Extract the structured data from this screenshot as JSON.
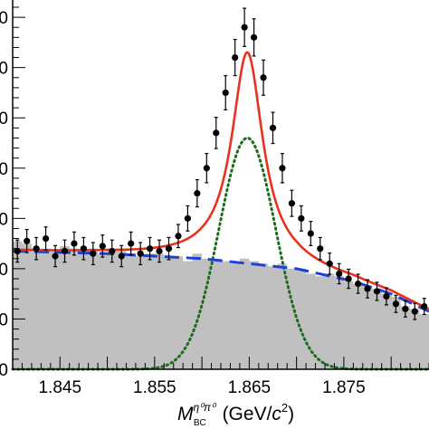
{
  "chart_data": {
    "type": "line",
    "title": "",
    "xlabel": {
      "main": "M",
      "sup": "η⁰π⁰",
      "sub": "BC",
      "units_open": " (GeV/",
      "units_italic": "c",
      "units_pow": "2",
      "units_close": ")"
    },
    "ylabel": "",
    "xlim": [
      1.84,
      1.884
    ],
    "ylim": [
      0,
      72
    ],
    "x_tick_labels": [
      "1.845",
      "1.855",
      "1.865",
      "1.875"
    ],
    "x_ticks": [
      1.845,
      1.855,
      1.865,
      1.875
    ],
    "y_tick_label_fragments": [
      "0",
      "0",
      "0",
      "0",
      "0",
      "0",
      "0",
      "0"
    ],
    "y_ticks": [
      0,
      10,
      20,
      30,
      40,
      50,
      60,
      70
    ],
    "grid": false,
    "legend": "none",
    "colors": {
      "data_points": "#000000",
      "total_fit": "#e8321e",
      "signal": "#1f6b1f",
      "background_fit": "#1f3fd6",
      "background_histogram": "#c0c0c0"
    },
    "series": [
      {
        "kind": "points_with_errors",
        "x": [
          1.8405,
          1.8415,
          1.8425,
          1.8435,
          1.8445,
          1.8455,
          1.8465,
          1.8475,
          1.8485,
          1.8495,
          1.8505,
          1.8515,
          1.8525,
          1.8535,
          1.8545,
          1.8555,
          1.8565,
          1.8575,
          1.8585,
          1.8595,
          1.8605,
          1.8615,
          1.8625,
          1.8635,
          1.8645,
          1.8655,
          1.8665,
          1.8675,
          1.8685,
          1.8695,
          1.8705,
          1.8715,
          1.8725,
          1.8735,
          1.8745,
          1.8755,
          1.8765,
          1.8775,
          1.8785,
          1.8795,
          1.8805,
          1.8815,
          1.8825,
          1.8835
        ],
        "y": [
          23.5,
          25.5,
          24.0,
          26.0,
          22.5,
          23.5,
          25.0,
          24.0,
          23.0,
          24.5,
          23.5,
          22.5,
          25.0,
          23.0,
          24.0,
          23.5,
          24.0,
          26.5,
          30.0,
          35.0,
          40.0,
          47.0,
          55.0,
          62.0,
          68.0,
          66.0,
          58.0,
          48.0,
          40.0,
          33.0,
          30.0,
          27.0,
          24.0,
          21.0,
          19.0,
          18.0,
          17.0,
          16.0,
          15.5,
          14.5,
          13.0,
          12.0,
          11.5,
          12.5
        ],
        "yerr": [
          2.2,
          2.3,
          2.2,
          2.3,
          2.1,
          2.2,
          2.3,
          2.2,
          2.2,
          2.2,
          2.2,
          2.1,
          2.3,
          2.2,
          2.2,
          2.2,
          2.2,
          2.3,
          2.5,
          2.7,
          2.9,
          3.1,
          3.4,
          3.6,
          3.8,
          3.7,
          3.5,
          3.1,
          2.9,
          2.6,
          2.5,
          2.4,
          2.2,
          2.1,
          2.0,
          1.9,
          1.9,
          1.8,
          1.8,
          1.7,
          1.7,
          1.6,
          1.6,
          1.6
        ]
      },
      {
        "kind": "total_fit",
        "peak_mean": 1.8648,
        "peak_width": 0.002,
        "peak_amplitude": 42.0
      },
      {
        "kind": "signal",
        "peak_mean": 1.8648,
        "peak_width": 0.003,
        "peak_amplitude": 46.0
      },
      {
        "kind": "background_fit",
        "x": [
          1.84,
          1.85,
          1.86,
          1.87,
          1.876,
          1.88,
          1.884
        ],
        "y": [
          23.5,
          23.0,
          22.0,
          20.0,
          17.5,
          15.0,
          11.5
        ]
      },
      {
        "kind": "background_histogram",
        "x": [
          1.8405,
          1.8415,
          1.8425,
          1.8435,
          1.8445,
          1.8455,
          1.8465,
          1.8475,
          1.8485,
          1.8495,
          1.8505,
          1.8515,
          1.8525,
          1.8535,
          1.8545,
          1.8555,
          1.8565,
          1.8575,
          1.8585,
          1.8595,
          1.8605,
          1.8615,
          1.8625,
          1.8635,
          1.8645,
          1.8655,
          1.8665,
          1.8675,
          1.8685,
          1.8695,
          1.8705,
          1.8715,
          1.8725,
          1.8735,
          1.8745,
          1.8755,
          1.8765,
          1.8775,
          1.8785,
          1.8795,
          1.8805,
          1.8815,
          1.8825,
          1.8835
        ],
        "y": [
          25.5,
          25.0,
          24.0,
          24.0,
          23.5,
          24.5,
          24.0,
          23.5,
          24.0,
          23.0,
          23.5,
          23.5,
          23.0,
          22.5,
          23.0,
          23.0,
          22.5,
          22.5,
          21.5,
          23.0,
          22.0,
          22.0,
          21.5,
          21.0,
          22.0,
          21.5,
          21.0,
          20.5,
          21.0,
          20.0,
          20.0,
          19.0,
          18.5,
          19.0,
          18.5,
          17.5,
          17.0,
          16.5,
          16.0,
          15.0,
          14.5,
          12.5,
          12.0,
          11.0
        ]
      }
    ]
  }
}
